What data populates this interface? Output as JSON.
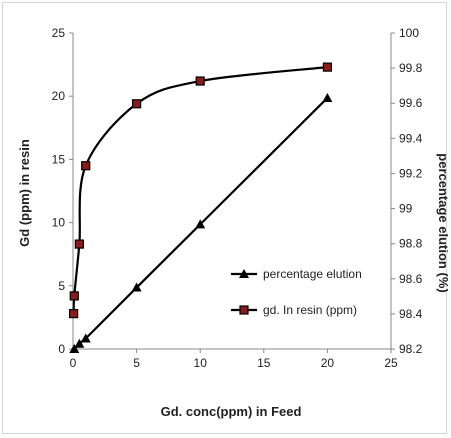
{
  "chart_data": {
    "type": "line",
    "xlabel": "Gd. conc(ppm) in Feed",
    "ylabel": "Gd (ppm) in resin",
    "y2label": "percentage elution (%)",
    "xlim": [
      0,
      25
    ],
    "ylim": [
      0,
      25
    ],
    "y2lim": [
      98.2,
      100
    ],
    "xticks": [
      "0",
      "5",
      "10",
      "15",
      "20",
      "25"
    ],
    "yticks": [
      "0",
      "5",
      "10",
      "15",
      "20",
      "25"
    ],
    "y2ticks": [
      "98.2",
      "98.4",
      "98.6",
      "98.8",
      "99",
      "99.2",
      "99.4",
      "99.6",
      "99.8",
      "100"
    ],
    "grid": false,
    "legend_position": "lower-right",
    "series": [
      {
        "name": "percentage elution",
        "axis": "right",
        "marker": "triangle",
        "color": "#000000",
        "x": [
          0.1,
          0.5,
          1,
          5,
          10,
          20
        ],
        "y": [
          98.2,
          98.23,
          98.26,
          98.55,
          98.91,
          99.63
        ]
      },
      {
        "name": "gd. In resin (ppm)",
        "axis": "left",
        "marker": "square",
        "color": "#000000",
        "fill": "#8b1a1a",
        "x": [
          0.05,
          0.1,
          0.5,
          1,
          5,
          10,
          20
        ],
        "y": [
          2.8,
          4.2,
          8.3,
          14.5,
          19.4,
          21.2,
          22.3
        ]
      }
    ]
  }
}
